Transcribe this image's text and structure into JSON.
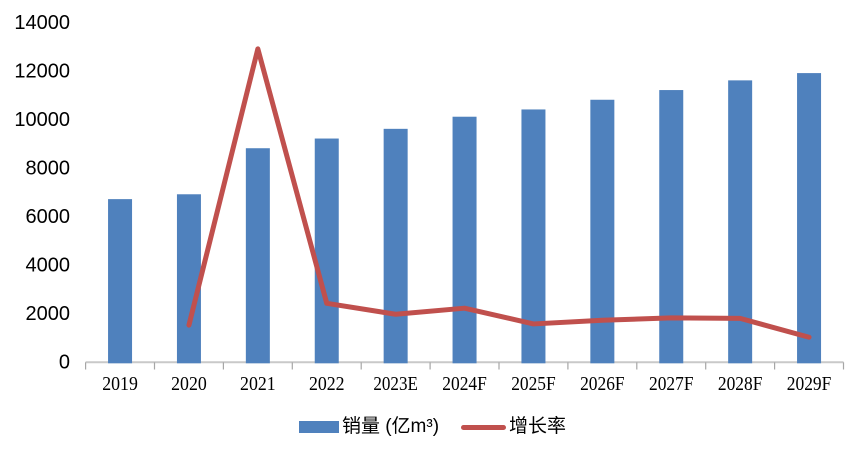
{
  "chart_data": {
    "type": "bar+line",
    "categories": [
      "2019",
      "2020",
      "2021",
      "2022",
      "2023E",
      "2024F",
      "2025F",
      "2026F",
      "2027F",
      "2028F",
      "2029F"
    ],
    "series": [
      {
        "name": "销量 (亿m³)",
        "type": "bar",
        "color": "#4F81BD",
        "values": [
          6700,
          6900,
          8800,
          9200,
          9600,
          10100,
          10400,
          10800,
          11200,
          11600,
          11900
        ]
      },
      {
        "name": "增长率",
        "type": "line",
        "color": "#C0504D",
        "values": [
          null,
          1500,
          12900,
          2400,
          1950,
          2200,
          1550,
          1700,
          1800,
          1780,
          1000
        ]
      }
    ],
    "ylabel": "",
    "xlabel": "",
    "ylim": [
      0,
      14000
    ],
    "ytick_step": 2000,
    "yticks": [
      0,
      2000,
      4000,
      6000,
      8000,
      10000,
      12000,
      14000
    ],
    "grid": false,
    "legend_position": "bottom",
    "axis_color": "#C9C9C9",
    "tick_color": "#A6A6A6",
    "text_color": "#000000"
  }
}
